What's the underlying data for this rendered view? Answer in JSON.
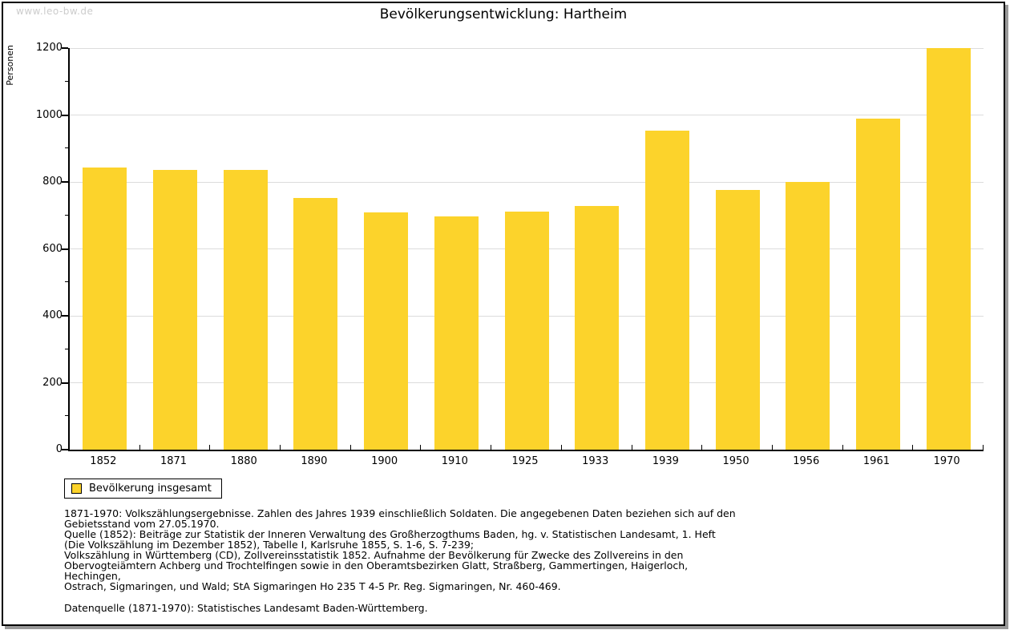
{
  "page": {
    "watermark": "www.leo-bw.de",
    "title": "Bevölkerungsentwicklung: Hartheim"
  },
  "chart_data": {
    "type": "bar",
    "title": "Bevölkerungsentwicklung: Hartheim",
    "xlabel": "",
    "ylabel": "Personen",
    "categories": [
      "1852",
      "1871",
      "1880",
      "1890",
      "1900",
      "1910",
      "1925",
      "1933",
      "1939",
      "1950",
      "1956",
      "1961",
      "1970"
    ],
    "series": [
      {
        "name": "Bevölkerung insgesamt",
        "values": [
          843,
          837,
          837,
          753,
          710,
          696,
          712,
          729,
          953,
          775,
          801,
          990,
          1200
        ]
      }
    ],
    "ylim": [
      0,
      1200
    ],
    "ytick_step": 200,
    "yminor_step": 100,
    "yticks": [
      0,
      200,
      400,
      600,
      800,
      1000,
      1200
    ],
    "grid": true,
    "legend_position": "bottom-left",
    "bar_color": "#fcd32b",
    "grid_color": "#dcdcdc",
    "axis_color": "#000000"
  },
  "legend": {
    "label": "Bevölkerung insgesamt",
    "swatch_color": "#fcd32b"
  },
  "footnotes": {
    "lines": [
      "1871-1970: Volkszählungsergebnisse. Zahlen des Jahres 1939 einschließlich Soldaten. Die angegebenen Daten beziehen sich auf den",
      "Gebietsstand vom 27.05.1970.",
      "Quelle (1852): Beiträge zur Statistik der Inneren Verwaltung des Großherzogthums Baden, hg. v. Statistischen Landesamt, 1. Heft",
      "(Die Volkszählung im Dezember 1852), Tabelle I, Karlsruhe 1855, S. 1-6, S. 7-239;",
      "Volkszählung in Württemberg (CD), Zollvereinsstatistik 1852. Aufnahme der Bevölkerung für Zwecke des Zollvereins in den",
      "Obervogteiämtern Achberg und Trochtelfingen sowie in den Oberamtsbezirken Glatt, Straßberg, Gammertingen, Haigerloch, Hechingen,",
      "Ostrach, Sigmaringen, und Wald; StA Sigmaringen Ho 235 T 4-5 Pr. Reg. Sigmaringen, Nr. 460-469."
    ],
    "datasource": "Datenquelle (1871-1970): Statistisches Landesamt Baden-Württemberg."
  },
  "colors": {
    "watermark": "#cccccc",
    "frame_border": "#000000",
    "frame_shadow": "#999999",
    "background": "#ffffff"
  }
}
